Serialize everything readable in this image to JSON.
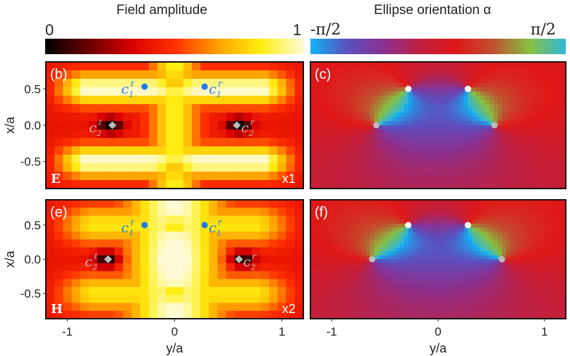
{
  "colorbars": [
    {
      "title": "Field amplitude",
      "min_label": "0",
      "max_label": "1",
      "colors": [
        "#000000",
        "#6a0000",
        "#d80000",
        "#ff3000",
        "#ffa000",
        "#ffee10",
        "#fffbd8"
      ]
    },
    {
      "title": "Ellipse orientation α",
      "min_label": "-π/2",
      "max_label": "π/2",
      "colors": [
        "#10b4f4",
        "#5a50c0",
        "#8a3090",
        "#c02040",
        "#e01818",
        "#c05030",
        "#88c040",
        "#30b8d8"
      ]
    }
  ],
  "chart_data": [
    {
      "type": "heatmap",
      "panel": "(b)",
      "field": "E",
      "scale_label": "x1",
      "quantity": "Field amplitude",
      "xlabel": "",
      "ylabel": "x/a",
      "xlim": [
        -1.2,
        1.2
      ],
      "ylim": [
        -0.87,
        0.87
      ],
      "yticks": [
        "0.5",
        "0.0",
        "-0.5"
      ],
      "markers": [
        {
          "label": "c",
          "sub": "1",
          "sup": "ℓ",
          "y": -0.28,
          "x": 0.53,
          "shape": "circle",
          "color": "#1a7cf0"
        },
        {
          "label": "c",
          "sub": "1",
          "sup": "r",
          "y": 0.28,
          "x": 0.53,
          "shape": "circle",
          "color": "#1a7cf0"
        },
        {
          "label": "c",
          "sub": "2",
          "sup": "ℓ",
          "y": -0.58,
          "x": 0.0,
          "shape": "diamond",
          "color": "#bbbbbb"
        },
        {
          "label": "c",
          "sub": "2",
          "sup": "r",
          "y": 0.58,
          "x": 0.0,
          "shape": "diamond",
          "color": "#bbbbbb"
        }
      ]
    },
    {
      "type": "heatmap",
      "panel": "(c)",
      "quantity": "Ellipse orientation α",
      "xlim": [
        -1.2,
        1.2
      ],
      "ylim": [
        -0.87,
        0.87
      ],
      "markers": [
        {
          "y": -0.28,
          "x": 0.5,
          "color": "#ffffff"
        },
        {
          "y": 0.28,
          "x": 0.5,
          "color": "#ffffff"
        },
        {
          "y": -0.58,
          "x": 0.0,
          "color": "#bbbbbb"
        },
        {
          "y": 0.53,
          "x": 0.0,
          "color": "#bbbbbb"
        }
      ]
    },
    {
      "type": "heatmap",
      "panel": "(e)",
      "field": "H",
      "scale_label": "x2",
      "quantity": "Field amplitude",
      "xlabel": "y/a",
      "ylabel": "x/a",
      "xlim": [
        -1.2,
        1.2
      ],
      "ylim": [
        -0.87,
        0.87
      ],
      "xticks": [
        "-1",
        "0",
        "1"
      ],
      "yticks": [
        "0.5",
        "0.0",
        "-0.5"
      ],
      "markers": [
        {
          "label": "c",
          "sub": "1",
          "sup": "ℓ",
          "y": -0.28,
          "x": 0.5,
          "shape": "circle",
          "color": "#1a7cf0"
        },
        {
          "label": "c",
          "sub": "1",
          "sup": "r",
          "y": 0.28,
          "x": 0.5,
          "shape": "circle",
          "color": "#1a7cf0"
        },
        {
          "label": "c",
          "sub": "2",
          "sup": "ℓ",
          "y": -0.62,
          "x": 0.0,
          "shape": "diamond",
          "color": "#bbbbbb"
        },
        {
          "label": "c",
          "sub": "2",
          "sup": "r",
          "y": 0.6,
          "x": 0.0,
          "shape": "diamond",
          "color": "#bbbbbb"
        }
      ]
    },
    {
      "type": "heatmap",
      "panel": "(f)",
      "quantity": "Ellipse orientation α",
      "xlabel": "y/a",
      "xlim": [
        -1.2,
        1.2
      ],
      "ylim": [
        -0.87,
        0.87
      ],
      "xticks": [
        "-1",
        "0",
        "1"
      ],
      "markers": [
        {
          "y": -0.28,
          "x": 0.5,
          "color": "#ffffff"
        },
        {
          "y": 0.28,
          "x": 0.5,
          "color": "#ffffff"
        },
        {
          "y": -0.62,
          "x": 0.0,
          "color": "#bbbbbb"
        },
        {
          "y": 0.6,
          "x": 0.0,
          "color": "#bbbbbb"
        }
      ]
    }
  ]
}
